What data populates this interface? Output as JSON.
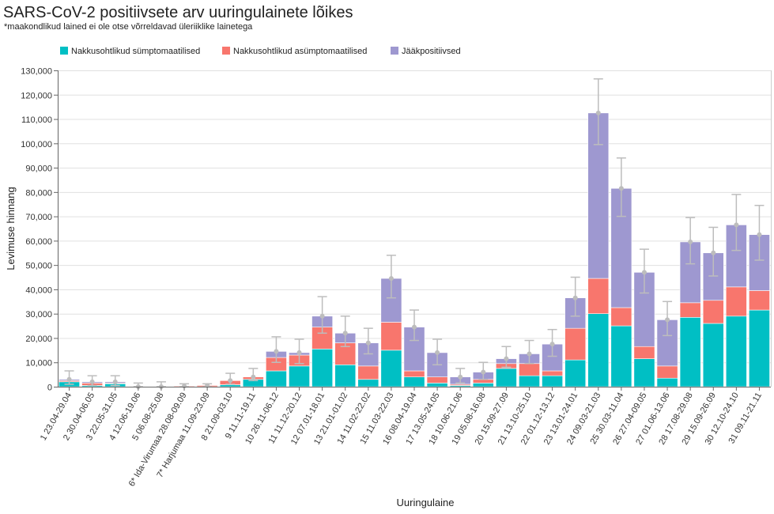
{
  "chart_data": {
    "type": "bar",
    "stacked": true,
    "title": "SARS-CoV-2 positiivsete arv uuringulainete lõikes",
    "subtitle": "*maakondlikud lained ei ole otse võrreldavad üleriiklike lainetega",
    "xlabel": "Uuringulaine",
    "ylabel": "Levimuse hinnang",
    "ylim": [
      0,
      130000
    ],
    "yticks": [
      0,
      10000,
      20000,
      30000,
      40000,
      50000,
      60000,
      70000,
      80000,
      90000,
      100000,
      110000,
      120000,
      130000
    ],
    "ytick_labels": [
      "0",
      "10,000",
      "20,000",
      "30,000",
      "40,000",
      "50,000",
      "60,000",
      "70,000",
      "80,000",
      "90,000",
      "100,000",
      "110,000",
      "120,000",
      "130,000"
    ],
    "grid": true,
    "legend_position": "top",
    "categories": [
      "1 23.04-29.04",
      "2 30.04-06.05",
      "3 22.05-31.05",
      "4 12.06-19.06",
      "5 06.08-25.08",
      "6* Ida-Virumaa 28.08-09.09",
      "7* Harjumaa 11.09-23.09",
      "8 21.09-03.10",
      "9 11.11-19.11",
      "10 26.11-06.12",
      "11 11.12-20.12",
      "12 07.01-18.01",
      "13 21.01-01.02",
      "14 11.02-22.02",
      "15 11.03-22.03",
      "16 08.04-19.04",
      "17 13.05-24.05",
      "18 10.06-21.06",
      "19 05.08-16.08",
      "20 15.09-27.09",
      "21 13.10-25.10",
      "22 01.12-13.12",
      "23 13.01-24.01",
      "24 09.03-21.03",
      "25 30.03-11.04",
      "26 27.04-09.05",
      "27 01.06-13.06",
      "28 17.08-29.08",
      "29 15.09-26.09",
      "30 12.10-24.10",
      "31 09.11-21.11"
    ],
    "series": [
      {
        "name": "Nakkusohtlikud sümptomaatilised",
        "color": "#00BFC4",
        "values": [
          2000,
          500,
          1200,
          0,
          0,
          0,
          0,
          800,
          3000,
          6500,
          8500,
          15500,
          9000,
          3000,
          15000,
          4000,
          1500,
          500,
          1500,
          7500,
          4500,
          4500,
          11000,
          30000,
          25000,
          11500,
          3500,
          28500,
          26000,
          29000,
          31500
        ]
      },
      {
        "name": "Nakkusohtlikud asümptomaatilised",
        "color": "#F8766D",
        "values": [
          500,
          1000,
          300,
          0,
          0,
          300,
          500,
          1700,
          1000,
          5500,
          4500,
          9000,
          9000,
          5500,
          11500,
          2500,
          2500,
          500,
          1500,
          2000,
          5000,
          2000,
          13000,
          14500,
          7500,
          5000,
          5000,
          6000,
          9500,
          12000,
          8000
        ]
      },
      {
        "name": "Jääkpositiivsed",
        "color": "#9E98D0",
        "values": [
          500,
          500,
          500,
          0,
          0,
          0,
          0,
          0,
          0,
          2500,
          1000,
          4500,
          4000,
          9500,
          18000,
          18000,
          10000,
          3000,
          3000,
          2000,
          4000,
          11000,
          12500,
          68000,
          49000,
          30500,
          19000,
          25000,
          19500,
          25500,
          23000
        ]
      }
    ],
    "error_bars": {
      "color": "#bdbdbd",
      "low": [
        1000,
        500,
        500,
        0,
        0,
        0,
        0,
        1000,
        2500,
        10000,
        9500,
        22000,
        16500,
        13500,
        36500,
        19000,
        9000,
        1500,
        3000,
        8000,
        9500,
        12500,
        29000,
        99500,
        70000,
        38500,
        21000,
        50500,
        45500,
        56000,
        52000
      ],
      "high": [
        6500,
        4500,
        4500,
        1500,
        2000,
        1200,
        1200,
        5500,
        7500,
        20500,
        19500,
        37000,
        29000,
        24000,
        54000,
        31500,
        19500,
        7500,
        10000,
        16500,
        19000,
        23500,
        45000,
        126500,
        94000,
        56500,
        35000,
        69500,
        65500,
        79000,
        74500
      ]
    }
  }
}
